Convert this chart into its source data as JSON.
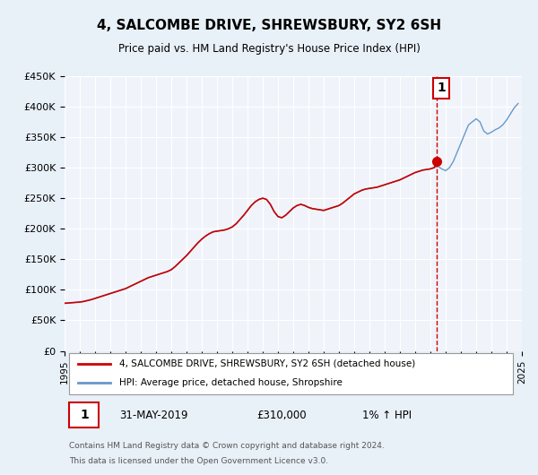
{
  "title": "4, SALCOMBE DRIVE, SHREWSBURY, SY2 6SH",
  "subtitle": "Price paid vs. HM Land Registry's House Price Index (HPI)",
  "legend_line1": "4, SALCOMBE DRIVE, SHREWSBURY, SY2 6SH (detached house)",
  "legend_line2": "HPI: Average price, detached house, Shropshire",
  "annotation_label": "1",
  "annotation_date": "31-MAY-2019",
  "annotation_price": "£310,000",
  "annotation_hpi": "1% ↑ HPI",
  "footnote1": "Contains HM Land Registry data © Crown copyright and database right 2024.",
  "footnote2": "This data is licensed under the Open Government Licence v3.0.",
  "sale_x": 2019.42,
  "sale_y": 310000,
  "vline_x": 2019.42,
  "ylim": [
    0,
    450000
  ],
  "xlim": [
    1995,
    2025
  ],
  "yticks": [
    0,
    50000,
    100000,
    150000,
    200000,
    250000,
    300000,
    350000,
    400000,
    450000
  ],
  "ytick_labels": [
    "£0",
    "£50K",
    "£100K",
    "£150K",
    "£200K",
    "£250K",
    "£300K",
    "£350K",
    "£400K",
    "£450K"
  ],
  "xticks": [
    1995,
    1996,
    1997,
    1998,
    1999,
    2000,
    2001,
    2002,
    2003,
    2004,
    2005,
    2006,
    2007,
    2008,
    2009,
    2010,
    2011,
    2012,
    2013,
    2014,
    2015,
    2016,
    2017,
    2018,
    2019,
    2020,
    2021,
    2022,
    2023,
    2024,
    2025
  ],
  "bg_color": "#e8f0f8",
  "plot_bg": "#f0f4fa",
  "line_color_red": "#cc0000",
  "line_color_blue": "#6699cc",
  "grid_color": "#ffffff",
  "hpi_data_x": [
    1995.0,
    1995.25,
    1995.5,
    1995.75,
    1996.0,
    1996.25,
    1996.5,
    1996.75,
    1997.0,
    1997.25,
    1997.5,
    1997.75,
    1998.0,
    1998.25,
    1998.5,
    1998.75,
    1999.0,
    1999.25,
    1999.5,
    1999.75,
    2000.0,
    2000.25,
    2000.5,
    2000.75,
    2001.0,
    2001.25,
    2001.5,
    2001.75,
    2002.0,
    2002.25,
    2002.5,
    2002.75,
    2003.0,
    2003.25,
    2003.5,
    2003.75,
    2004.0,
    2004.25,
    2004.5,
    2004.75,
    2005.0,
    2005.25,
    2005.5,
    2005.75,
    2006.0,
    2006.25,
    2006.5,
    2006.75,
    2007.0,
    2007.25,
    2007.5,
    2007.75,
    2008.0,
    2008.25,
    2008.5,
    2008.75,
    2009.0,
    2009.25,
    2009.5,
    2009.75,
    2010.0,
    2010.25,
    2010.5,
    2010.75,
    2011.0,
    2011.25,
    2011.5,
    2011.75,
    2012.0,
    2012.25,
    2012.5,
    2012.75,
    2013.0,
    2013.25,
    2013.5,
    2013.75,
    2014.0,
    2014.25,
    2014.5,
    2014.75,
    2015.0,
    2015.25,
    2015.5,
    2015.75,
    2016.0,
    2016.25,
    2016.5,
    2016.75,
    2017.0,
    2017.25,
    2017.5,
    2017.75,
    2018.0,
    2018.25,
    2018.5,
    2018.75,
    2019.0,
    2019.25,
    2019.5,
    2019.75,
    2020.0,
    2020.25,
    2020.5,
    2020.75,
    2021.0,
    2021.25,
    2021.5,
    2021.75,
    2022.0,
    2022.25,
    2022.5,
    2022.75,
    2023.0,
    2023.25,
    2023.5,
    2023.75,
    2024.0,
    2024.25,
    2024.5,
    2024.75
  ],
  "hpi_data_y": [
    78000,
    78500,
    79000,
    79500,
    80000,
    81000,
    82500,
    84000,
    86000,
    88000,
    90000,
    92000,
    94000,
    96000,
    98000,
    100000,
    102000,
    105000,
    108000,
    111000,
    114000,
    117000,
    120000,
    122000,
    124000,
    126000,
    128000,
    130000,
    133000,
    138000,
    144000,
    150000,
    156000,
    163000,
    170000,
    177000,
    183000,
    188000,
    192000,
    195000,
    196000,
    197000,
    198000,
    200000,
    203000,
    208000,
    215000,
    222000,
    230000,
    238000,
    244000,
    248000,
    250000,
    248000,
    240000,
    228000,
    220000,
    218000,
    222000,
    228000,
    234000,
    238000,
    240000,
    238000,
    235000,
    233000,
    232000,
    231000,
    230000,
    232000,
    234000,
    236000,
    238000,
    242000,
    247000,
    252000,
    257000,
    260000,
    263000,
    265000,
    266000,
    267000,
    268000,
    270000,
    272000,
    274000,
    276000,
    278000,
    280000,
    283000,
    286000,
    289000,
    292000,
    294000,
    296000,
    297000,
    298000,
    300000,
    302000,
    298000,
    295000,
    300000,
    310000,
    325000,
    340000,
    355000,
    370000,
    375000,
    380000,
    375000,
    360000,
    355000,
    358000,
    362000,
    365000,
    370000,
    378000,
    388000,
    398000,
    405000
  ],
  "red_data_x": [
    1995.0,
    1995.25,
    1995.5,
    1995.75,
    1996.0,
    1996.25,
    1996.5,
    1996.75,
    1997.0,
    1997.25,
    1997.5,
    1997.75,
    1998.0,
    1998.25,
    1998.5,
    1998.75,
    1999.0,
    1999.25,
    1999.5,
    1999.75,
    2000.0,
    2000.25,
    2000.5,
    2000.75,
    2001.0,
    2001.25,
    2001.5,
    2001.75,
    2002.0,
    2002.25,
    2002.5,
    2002.75,
    2003.0,
    2003.25,
    2003.5,
    2003.75,
    2004.0,
    2004.25,
    2004.5,
    2004.75,
    2005.0,
    2005.25,
    2005.5,
    2005.75,
    2006.0,
    2006.25,
    2006.5,
    2006.75,
    2007.0,
    2007.25,
    2007.5,
    2007.75,
    2008.0,
    2008.25,
    2008.5,
    2008.75,
    2009.0,
    2009.25,
    2009.5,
    2009.75,
    2010.0,
    2010.25,
    2010.5,
    2010.75,
    2011.0,
    2011.25,
    2011.5,
    2011.75,
    2012.0,
    2012.25,
    2012.5,
    2012.75,
    2013.0,
    2013.25,
    2013.5,
    2013.75,
    2014.0,
    2014.25,
    2014.5,
    2014.75,
    2015.0,
    2015.25,
    2015.5,
    2015.75,
    2016.0,
    2016.25,
    2016.5,
    2016.75,
    2017.0,
    2017.25,
    2017.5,
    2017.75,
    2018.0,
    2018.25,
    2018.5,
    2018.75,
    2019.0,
    2019.25,
    2019.42
  ],
  "red_data_y": [
    78000,
    78500,
    79000,
    79500,
    80000,
    81000,
    82500,
    84000,
    86000,
    88000,
    90000,
    92000,
    94000,
    96000,
    98000,
    100000,
    102000,
    105000,
    108000,
    111000,
    114000,
    117000,
    120000,
    122000,
    124000,
    126000,
    128000,
    130000,
    133000,
    138000,
    144000,
    150000,
    156000,
    163000,
    170000,
    177000,
    183000,
    188000,
    192000,
    195000,
    196000,
    197000,
    198000,
    200000,
    203000,
    208000,
    215000,
    222000,
    230000,
    238000,
    244000,
    248000,
    250000,
    248000,
    240000,
    228000,
    220000,
    218000,
    222000,
    228000,
    234000,
    238000,
    240000,
    238000,
    235000,
    233000,
    232000,
    231000,
    230000,
    232000,
    234000,
    236000,
    238000,
    242000,
    247000,
    252000,
    257000,
    260000,
    263000,
    265000,
    266000,
    267000,
    268000,
    270000,
    272000,
    274000,
    276000,
    278000,
    280000,
    283000,
    286000,
    289000,
    292000,
    294000,
    296000,
    297000,
    298000,
    300000,
    310000
  ]
}
